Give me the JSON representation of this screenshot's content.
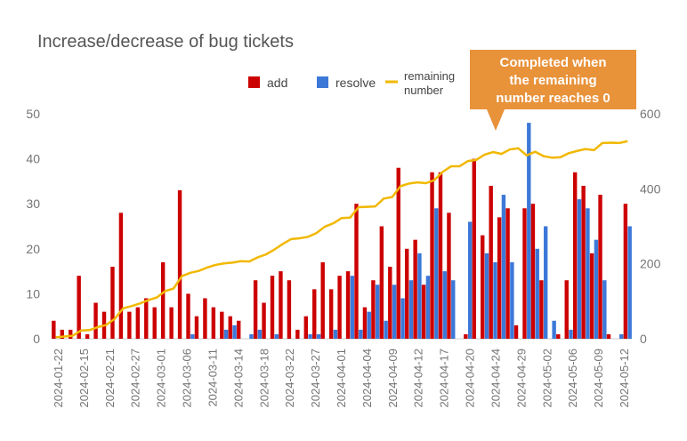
{
  "chart_data": {
    "type": "bar",
    "title": "Increase/decrease of bug tickets",
    "legend": {
      "placement": "top-center",
      "items": [
        {
          "key": "add",
          "label": "add",
          "color": "#cc0000",
          "shape": "square"
        },
        {
          "key": "resolve",
          "label": "resolve",
          "color": "#3c78d8",
          "shape": "square"
        },
        {
          "key": "remaining",
          "label_lines": [
            "remaining",
            "number"
          ],
          "color": "#f1b800",
          "shape": "line"
        }
      ]
    },
    "annotation": {
      "lines": [
        "Completed when",
        "the remaining",
        "number reaches 0"
      ],
      "color": "#e8923a"
    },
    "y_left": {
      "min": 0,
      "max": 50,
      "ticks": [
        "0",
        "10",
        "20",
        "30",
        "40",
        "50"
      ]
    },
    "y_right": {
      "min": 0,
      "max": 600,
      "ticks": [
        "0",
        "200",
        "400",
        "600"
      ]
    },
    "grid": false,
    "x_tick_labels": [
      "2024-01-22",
      "2024-02-15",
      "2024-02-21",
      "2024-02-27",
      "2024-03-01",
      "2024-03-06",
      "2024-03-11",
      "2024-03-14",
      "2024-03-18",
      "2024-03-22",
      "2024-03-27",
      "2024-04-01",
      "2024-04-04",
      "2024-04-09",
      "2024-04-12",
      "2024-04-17",
      "2024-04-20",
      "2024-04-24",
      "2024-04-29",
      "2024-05-02",
      "2024-05-06",
      "2024-05-09",
      "2024-05-12"
    ],
    "series": [
      {
        "name": "add",
        "axis": "left",
        "color": "#cc0000",
        "values": [
          4,
          2,
          2,
          14,
          1,
          8,
          6,
          16,
          28,
          6,
          7,
          9,
          7,
          17,
          7,
          33,
          10,
          5,
          9,
          7,
          6,
          5,
          4,
          0,
          13,
          8,
          14,
          15,
          13,
          2,
          5,
          11,
          17,
          11,
          14,
          15,
          30,
          7,
          13,
          25,
          16,
          38,
          20,
          22,
          12,
          37,
          37,
          28,
          0,
          1,
          40,
          23,
          34,
          27,
          29,
          3,
          29,
          30,
          13,
          0,
          1,
          13,
          37,
          34,
          19,
          32,
          1,
          0,
          30
        ]
      },
      {
        "name": "resolve",
        "axis": "left",
        "color": "#3c78d8",
        "values": [
          0,
          0,
          0,
          0,
          0,
          0,
          0,
          0,
          0,
          0,
          0,
          0,
          0,
          0,
          0,
          0,
          1,
          0,
          0,
          0,
          2,
          3,
          0,
          1,
          2,
          0,
          1,
          0,
          0,
          0,
          1,
          1,
          0,
          2,
          0,
          14,
          2,
          6,
          12,
          4,
          12,
          9,
          13,
          19,
          14,
          29,
          15,
          13,
          0,
          26,
          0,
          19,
          17,
          32,
          17,
          0,
          48,
          20,
          25,
          4,
          0,
          2,
          31,
          29,
          22,
          13,
          0,
          1,
          25
        ]
      },
      {
        "name": "remaining number",
        "axis": "right",
        "color": "#f1b800",
        "values": [
          4,
          6,
          8,
          22,
          23,
          31,
          37,
          53,
          81,
          87,
          94,
          103,
          110,
          127,
          134,
          167,
          176,
          181,
          190,
          197,
          201,
          203,
          207,
          206,
          217,
          225,
          238,
          253,
          266,
          268,
          272,
          282,
          299,
          308,
          322,
          323,
          351,
          352,
          353,
          374,
          378,
          407,
          414,
          417,
          415,
          423,
          445,
          460,
          460,
          474,
          477,
          491,
          498,
          493,
          505,
          508,
          489,
          499,
          487,
          483,
          484,
          495,
          501,
          506,
          503,
          522,
          523,
          522,
          527
        ]
      }
    ]
  }
}
